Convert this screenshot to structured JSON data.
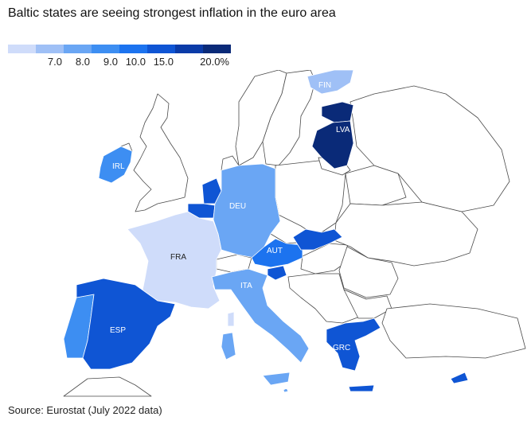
{
  "title": "Baltic states are seeing strongest inflation in the euro area",
  "source": "Source: Eurostat (July 2022 data)",
  "legend": {
    "bins": [
      {
        "color": "#cfdcfa",
        "label": ""
      },
      {
        "color": "#9fc0f6",
        "label": "7.0"
      },
      {
        "color": "#6aa6f4",
        "label": "8.0"
      },
      {
        "color": "#3d8ef2",
        "label": "9.0"
      },
      {
        "color": "#1c73ef",
        "label": "10.0"
      },
      {
        "color": "#0f55d4",
        "label": "15.0"
      },
      {
        "color": "#0a3ba8",
        "label": ""
      },
      {
        "color": "#0a2a78",
        "label": "20.0%"
      }
    ]
  },
  "colors": {
    "land": "#ffffff",
    "border": "#4a4a4a",
    "fra": "#cfdcfa",
    "fin": "#9fc0f6",
    "deu": "#6aa6f4",
    "ita": "#6aa6f4",
    "aut": "#1c73ef",
    "irl": "#3d8ef2",
    "prt": "#3d8ef2",
    "esp": "#0f55d4",
    "grc": "#0f55d4",
    "svk": "#0f55d4",
    "svn": "#0f55d4",
    "bel": "#0f55d4",
    "nld": "#0f55d4",
    "lva": "#0a2a78",
    "est": "#0a2a78",
    "cyp": "#0f55d4",
    "mlt": "#6aa6f4"
  },
  "countries": {
    "lva": "LVA",
    "fin": "FIN",
    "irl": "IRL",
    "deu": "DEU",
    "fra": "FRA",
    "aut": "AUT",
    "ita": "ITA",
    "esp": "ESP",
    "grc": "GRC"
  }
}
